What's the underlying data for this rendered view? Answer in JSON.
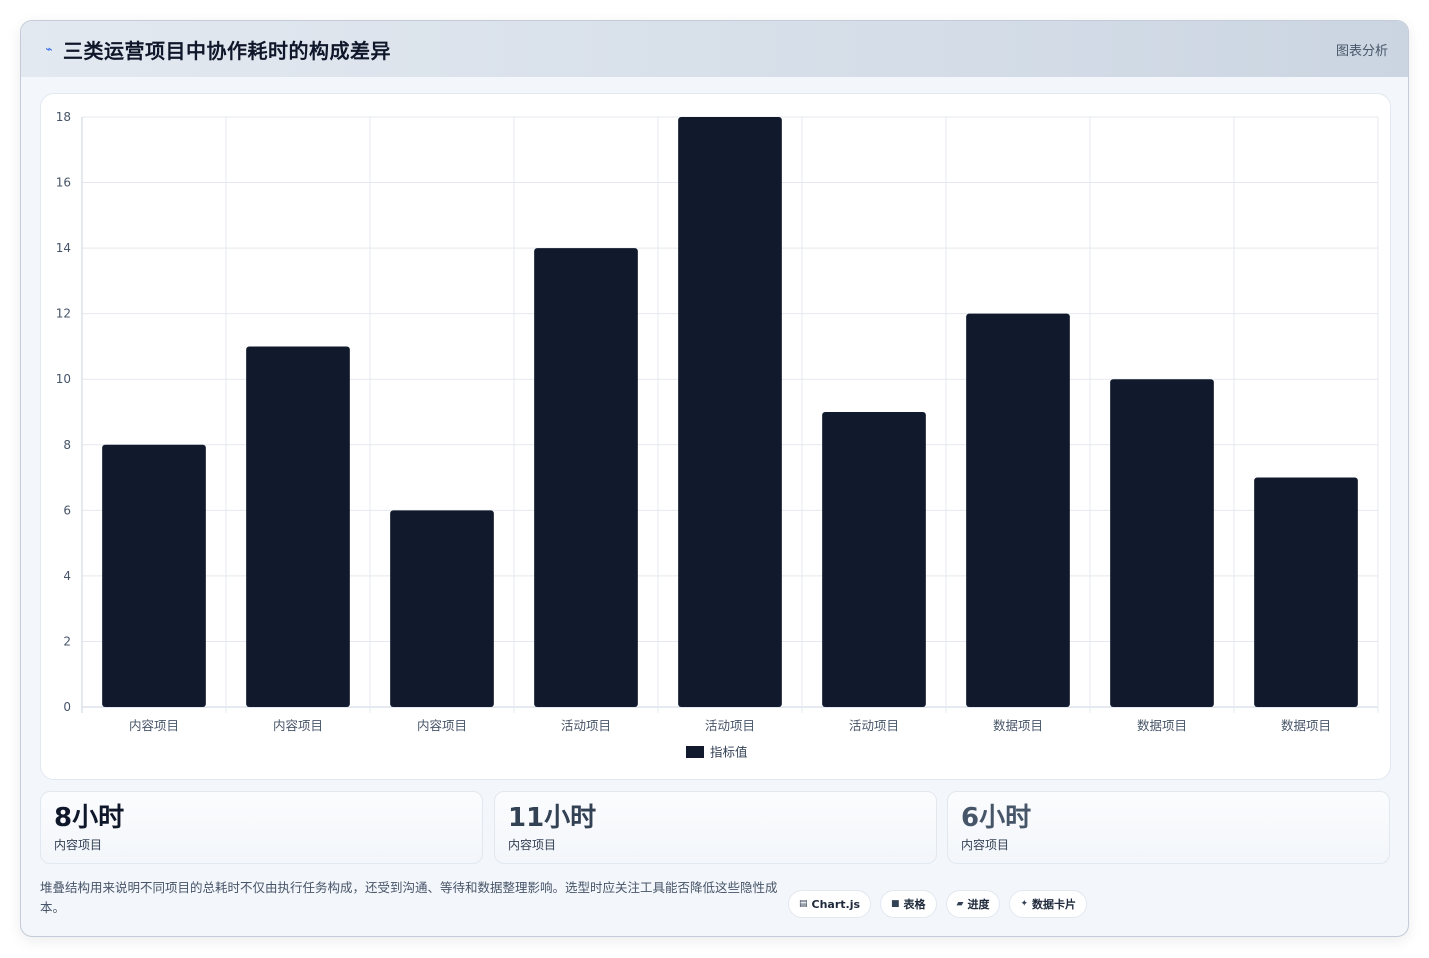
{
  "header": {
    "icon": "pulse-icon",
    "title": "三类运营项目中协作耗时的构成差异",
    "tag": "图表分析"
  },
  "chart_data": {
    "type": "bar",
    "categories": [
      "内容项目",
      "内容项目",
      "内容项目",
      "活动项目",
      "活动项目",
      "活动项目",
      "数据项目",
      "数据项目",
      "数据项目"
    ],
    "series": [
      {
        "name": "指标值",
        "values": [
          8,
          11,
          6,
          14,
          18,
          9,
          12,
          10,
          7
        ],
        "color": "#111a2c"
      }
    ],
    "ylim": [
      0,
      18
    ],
    "yticks": [
      "0",
      "2",
      "4",
      "6",
      "8",
      "10",
      "12",
      "14",
      "16",
      "18"
    ],
    "grid": true,
    "legend": "bottom"
  },
  "stats": [
    {
      "value": "8小时",
      "label": "内容项目",
      "color": "#0f172a"
    },
    {
      "value": "11小时",
      "label": "内容项目",
      "color": "#334155"
    },
    {
      "value": "6小时",
      "label": "内容项目",
      "color": "#475569"
    }
  ],
  "note": "堆叠结构用来说明不同项目的总耗时不仅由执行任务构成，还受到沟通、等待和数据整理影响。选型时应关注工具能否降低这些隐性成本。",
  "chips": [
    {
      "icon": "chart-icon",
      "glyph": "▤",
      "label": "Chart.js"
    },
    {
      "icon": "table-icon",
      "glyph": "■",
      "label": "表格"
    },
    {
      "icon": "progress-icon",
      "glyph": "▰",
      "label": "进度"
    },
    {
      "icon": "card-icon",
      "glyph": "✦",
      "label": "数据卡片"
    }
  ]
}
